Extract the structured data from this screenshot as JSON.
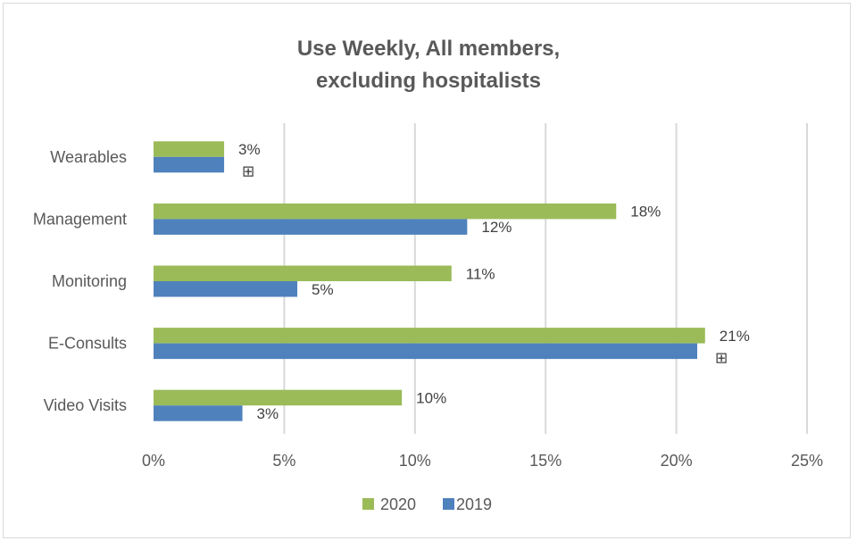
{
  "chart_data": {
    "type": "bar",
    "orientation": "horizontal",
    "title": "Use Weekly, All members, excluding hospitalists",
    "title_lines": [
      "Use Weekly, All members,",
      "excluding hospitalists"
    ],
    "xlabel": "",
    "ylabel": "",
    "categories": [
      "Wearables",
      "Management",
      "Monitoring",
      "E-Consults",
      "Video Visits"
    ],
    "series": [
      {
        "name": "2020",
        "color": "#9BBB59",
        "values": [
          0.027,
          0.177,
          0.114,
          0.211,
          0.095
        ],
        "labels": [
          "3%",
          "18%",
          "11%",
          "21%",
          "10%"
        ]
      },
      {
        "name": "2019",
        "color": "#4F81BD",
        "values": [
          0.027,
          0.12,
          0.055,
          0.208,
          0.034
        ],
        "labels": [
          "⊞",
          "12%",
          "5%",
          "⊞",
          "3%"
        ]
      }
    ],
    "xlim": [
      0,
      0.25
    ],
    "xticks": [
      0,
      0.05,
      0.1,
      0.15,
      0.2,
      0.25
    ],
    "xtick_labels": [
      "0%",
      "5%",
      "10%",
      "15%",
      "20%",
      "25%"
    ],
    "grid": true,
    "legend": {
      "position": "bottom",
      "entries": [
        "2020",
        "2019"
      ]
    }
  }
}
